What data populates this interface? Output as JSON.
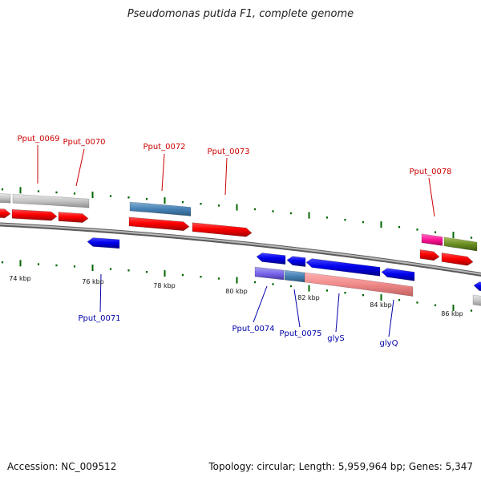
{
  "title": "Pseudomonas putida F1, complete genome",
  "footer": {
    "accession": "Accession: NC_009512",
    "summary": "Topology: circular; Length: 5,959,964 bp; Genes: 5,347"
  },
  "colors": {
    "forward_label": "#cc0000",
    "reverse_label": "#0000aa",
    "backbone": "#808080",
    "tick": "#006600"
  },
  "scale": {
    "labels": [
      {
        "text": "74 kbp"
      },
      {
        "text": "76 kbp"
      },
      {
        "text": "78 kbp"
      },
      {
        "text": "80 kbp"
      },
      {
        "text": "82 kbp"
      },
      {
        "text": "84 kbp"
      },
      {
        "text": "86 kbp"
      }
    ]
  },
  "gene_labels": {
    "forward": [
      {
        "name": "Pput_0069"
      },
      {
        "name": "Pput_0070"
      },
      {
        "name": "Pput_0072"
      },
      {
        "name": "Pput_0073"
      },
      {
        "name": "Pput_0078"
      }
    ],
    "reverse": [
      {
        "name": "Pput_0071"
      },
      {
        "name": "Pput_0074"
      },
      {
        "name": "Pput_0075"
      },
      {
        "name": "glyS"
      },
      {
        "name": "glyQ"
      }
    ]
  }
}
